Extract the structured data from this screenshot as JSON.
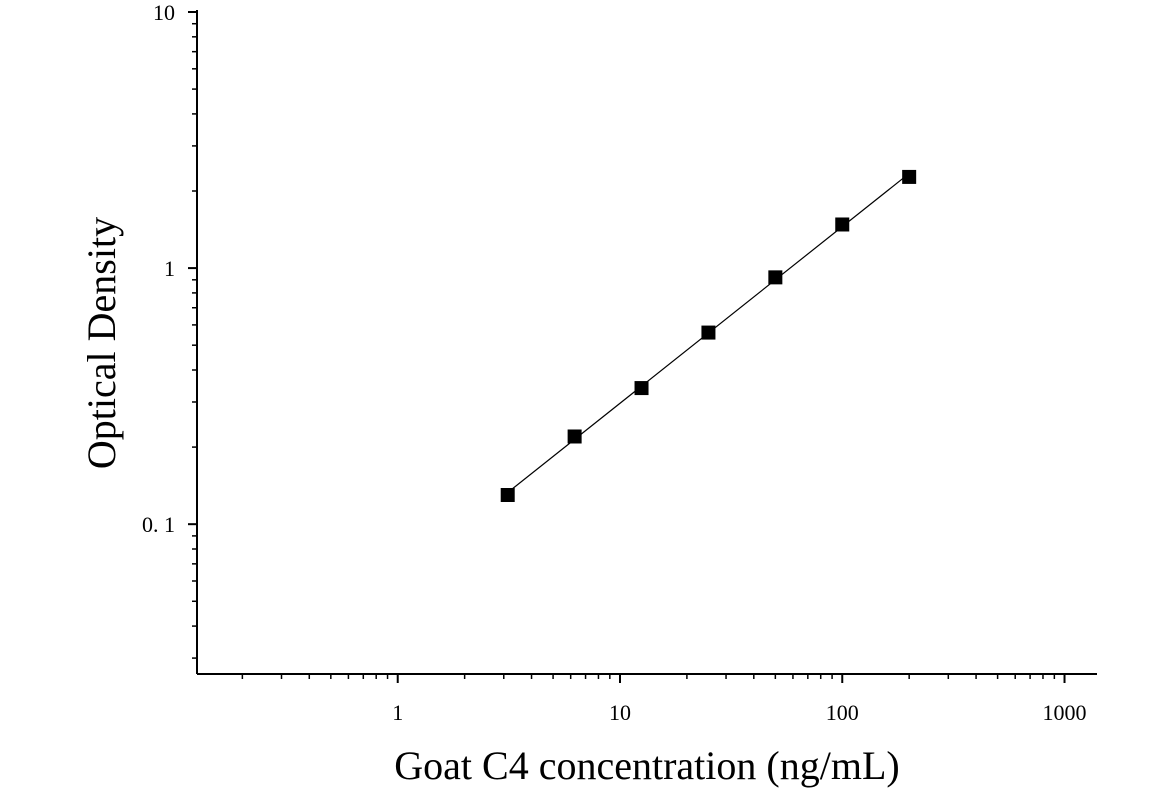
{
  "chart_data": {
    "type": "scatter",
    "xlabel": "Goat C4 concentration (ng/mL)",
    "ylabel": "Optical Density",
    "xscale": "log",
    "yscale": "log",
    "xlim": [
      0.125,
      1400
    ],
    "ylim": [
      0.026,
      10
    ],
    "xticks": [
      {
        "value": 1,
        "label": "1"
      },
      {
        "value": 10,
        "label": "10"
      },
      {
        "value": 100,
        "label": "100"
      },
      {
        "value": 1000,
        "label": "1000"
      }
    ],
    "yticks": [
      {
        "value": 0.1,
        "label": "0. 1"
      },
      {
        "value": 1,
        "label": "1"
      },
      {
        "value": 10,
        "label": "10"
      }
    ],
    "grid": false,
    "marker": "square",
    "fit_line": true,
    "series": [
      {
        "x": [
          3.125,
          6.25,
          12.5,
          25,
          50,
          100,
          200
        ],
        "y": [
          0.13,
          0.22,
          0.34,
          0.56,
          0.92,
          1.48,
          2.27
        ]
      }
    ],
    "colors": {
      "axis": "#000000",
      "marker": "#000000",
      "line": "#000000"
    }
  }
}
